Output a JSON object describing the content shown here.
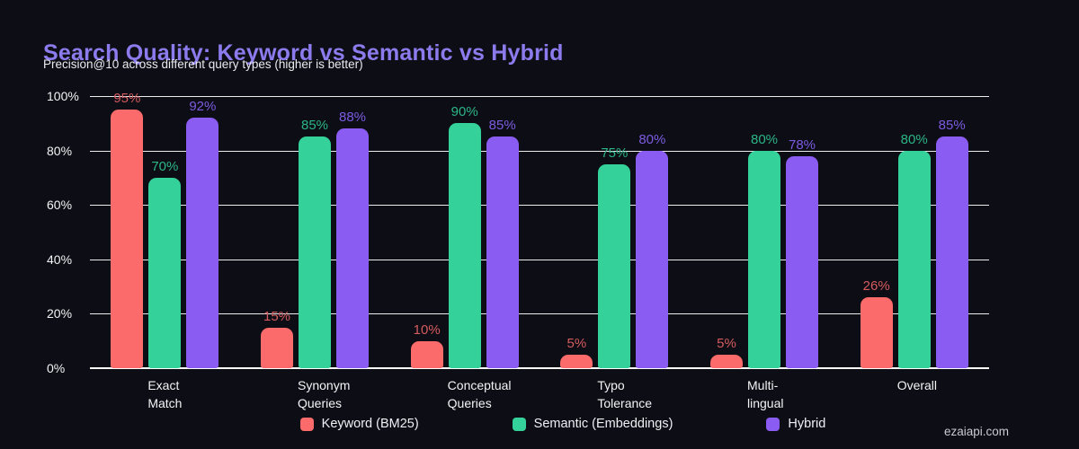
{
  "page": {
    "background_color": "#0d0e15",
    "title_color": "#8d7bee",
    "watermark": "ezaiapi.com"
  },
  "chart_data": {
    "type": "bar",
    "title": "Search Quality: Keyword vs Semantic vs Hybrid",
    "subtitle": "Precision@10 across different query types (higher is better)",
    "categories": [
      "Exact\nMatch",
      "Synonym\nQueries",
      "Conceptual\nQueries",
      "Typo\nTolerance",
      "Multi-\nlingual",
      "Overall"
    ],
    "series": [
      {
        "name": "Keyword (BM25)",
        "color": "#fc6b6b",
        "label_color": "#d45b5f",
        "values": [
          95,
          15,
          10,
          5,
          5,
          26
        ]
      },
      {
        "name": "Semantic (Embeddings)",
        "color": "#35d19b",
        "label_color": "#2cb586",
        "values": [
          70,
          85,
          90,
          75,
          80,
          80
        ]
      },
      {
        "name": "Hybrid",
        "color": "#8a5cf2",
        "label_color": "#7d5be0",
        "values": [
          92,
          88,
          85,
          80,
          78,
          85
        ]
      }
    ],
    "yticks": [
      0,
      20,
      40,
      60,
      80,
      100
    ],
    "ylim": [
      0,
      100
    ],
    "value_suffix": "%",
    "tick_suffix": "%",
    "grid": "horizontal",
    "legend_position": "bottom"
  }
}
